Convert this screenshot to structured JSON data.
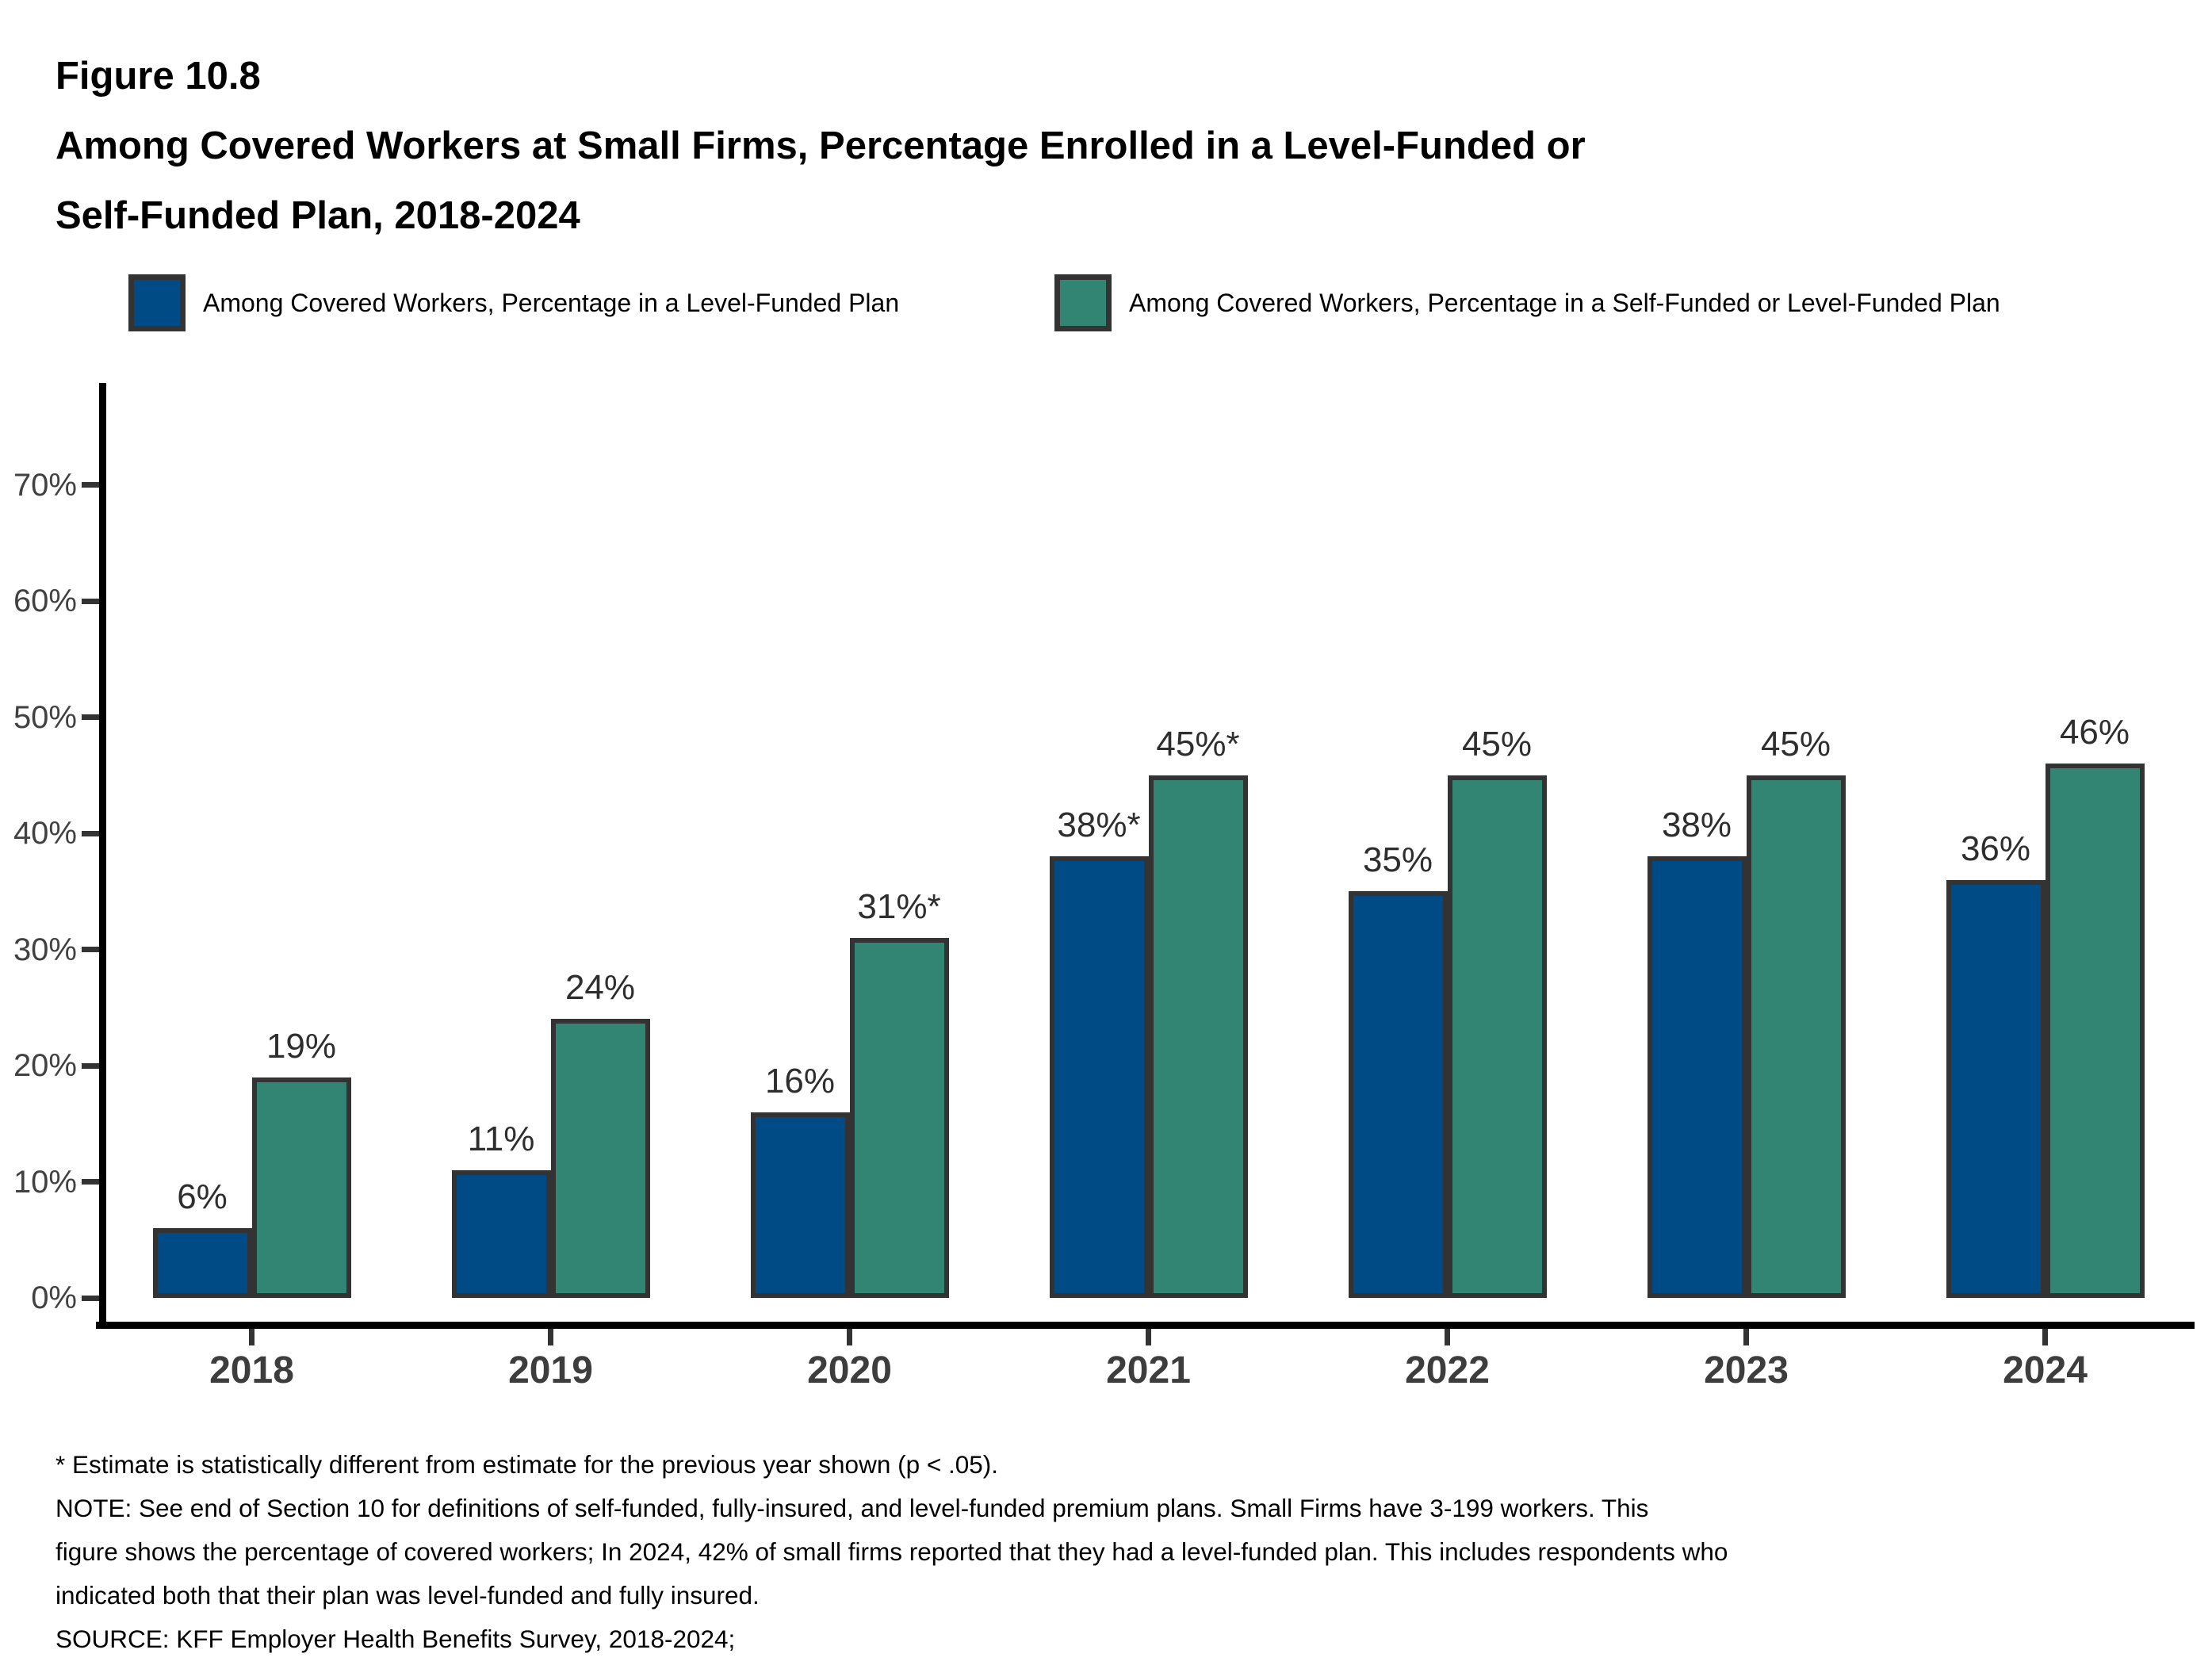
{
  "figure": {
    "title_lines": [
      "Figure 10.8",
      "Among Covered Workers at Small Firms, Percentage Enrolled in a Level-Funded or",
      "Self-Funded Plan, 2018-2024"
    ]
  },
  "legend": [
    {
      "label": "Among Covered Workers, Percentage in a Level-Funded Plan",
      "color": "#004B85"
    },
    {
      "label": "Among Covered Workers, Percentage in a Self-Funded or Level-Funded Plan",
      "color": "#328573"
    }
  ],
  "chart_data": {
    "type": "bar",
    "categories": [
      "2018",
      "2019",
      "2020",
      "2021",
      "2022",
      "2023",
      "2024"
    ],
    "series": [
      {
        "name": "Among Covered Workers, Percentage in a Level-Funded Plan",
        "color": "#004B85",
        "values": [
          6,
          11,
          16,
          38,
          35,
          38,
          36
        ],
        "data_labels": [
          "6%",
          "11%",
          "16%",
          "38%*",
          "35%",
          "38%",
          "36%"
        ]
      },
      {
        "name": "Among Covered Workers, Percentage in a Self-Funded or Level-Funded Plan",
        "color": "#328573",
        "values": [
          19,
          24,
          31,
          45,
          45,
          45,
          46
        ],
        "data_labels": [
          "19%",
          "24%",
          "31%*",
          "45%*",
          "45%",
          "45%",
          "46%"
        ]
      }
    ],
    "y_ticks": [
      "0%",
      "10%",
      "20%",
      "30%",
      "40%",
      "50%",
      "60%",
      "70%"
    ],
    "ylim": [
      0,
      79
    ],
    "xlabel": "",
    "ylabel": "",
    "grid": false,
    "legend_position": "top",
    "bar_border_color": "#333333",
    "axis_color": "#000000",
    "tick_label_color": "#414141"
  },
  "footnotes": {
    "lines": [
      "* Estimate is statistically different from estimate for the previous year shown (p < .05).",
      "NOTE: See end of Section 10 for definitions of self-funded, fully-insured, and level-funded premium plans. Small Firms have 3-199 workers. This",
      "figure shows the percentage of covered workers; In 2024, 42% of small firms reported that they had a level-funded plan. This includes respondents who",
      "indicated both that their plan was level-funded and fully insured.",
      "SOURCE: KFF Employer Health Benefits Survey, 2018-2024;"
    ]
  }
}
